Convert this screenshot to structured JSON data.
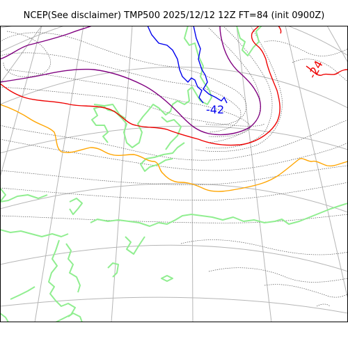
{
  "title": "NCEP(See disclaimer) TMP500 2025/12/12 12Z FT=84 (init 0900Z)",
  "labels": {
    "low_center": "-42",
    "east": "-24"
  },
  "colors": {
    "coastline": "#90ee90",
    "graticule": "#b5b5b5",
    "contour_minus_42": "#0000ee",
    "contour_purple": "#800080",
    "contour_red": "#ee0000",
    "contour_orange": "#ffa500",
    "isotherms": "#555555"
  }
}
